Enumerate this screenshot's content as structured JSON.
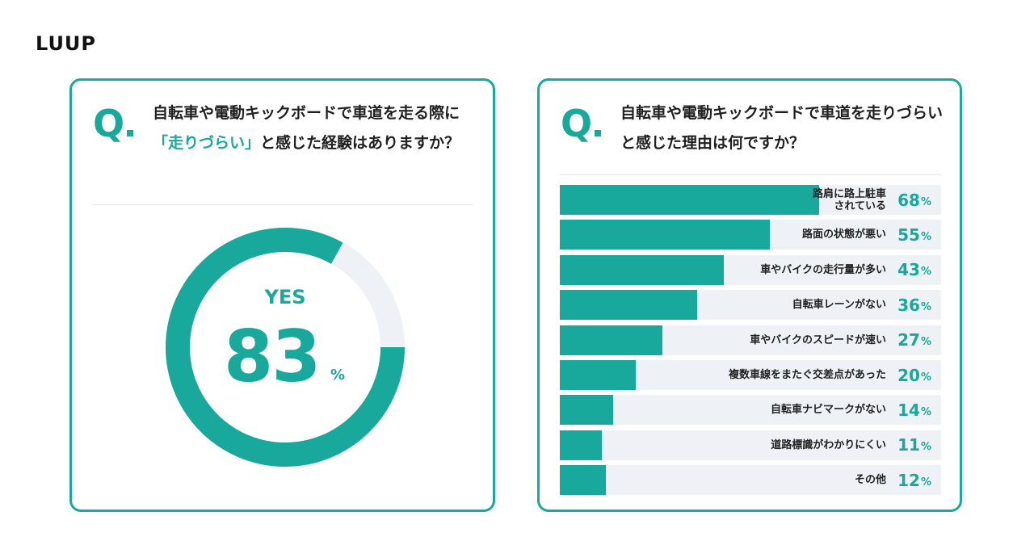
{
  "brand": {
    "logo_text": "LUUP",
    "accent_color": "#19a89c",
    "track_color": "#eef1f6"
  },
  "card_left": {
    "q_mark": "Q",
    "question_part1": "自転車や電動キックボードで車道を走る際に",
    "question_highlight": "「走りづらい」",
    "question_part2": "と感じた経験はありますか？",
    "answer_label": "YES",
    "percent_value": "83",
    "percent_unit": "%"
  },
  "card_right": {
    "q_mark": "Q",
    "question": "自転車や電動キックボードで車道を走りづらいと感じた理由は何ですか？"
  },
  "chart_data": [
    {
      "type": "pie",
      "title": "自転車や電動キックボードで車道を走る際に「走りづらい」と感じた経験はありますか？",
      "labels": [
        "YES",
        ""
      ],
      "values": [
        83,
        17
      ],
      "unit": "%",
      "style": "donut"
    },
    {
      "type": "bar",
      "orientation": "horizontal",
      "title": "自転車や電動キックボードで車道を走りづらいと感じた理由は何ですか？",
      "categories": [
        "路肩に路上駐車されている",
        "路面の状態が悪い",
        "車やバイクの走行量が多い",
        "自転車レーンがない",
        "車やバイクのスピードが速い",
        "複数車線をまたぐ交差点があった",
        "自転車ナビマークがない",
        "道路標識がわかりにくい",
        "その他"
      ],
      "label_lines": [
        [
          "路肩に路上駐車",
          "されている"
        ],
        [
          "路面の状態が悪い"
        ],
        [
          "車やバイクの走行量が多い"
        ],
        [
          "自転車レーンがない"
        ],
        [
          "車やバイクのスピードが速い"
        ],
        [
          "複数車線をまたぐ交差点があった"
        ],
        [
          "自転車ナビマークがない"
        ],
        [
          "道路標識がわかりにくい"
        ],
        [
          "その他"
        ]
      ],
      "values": [
        68,
        55,
        43,
        36,
        27,
        20,
        14,
        11,
        12
      ],
      "unit": "%",
      "xlim": [
        0,
        100
      ]
    }
  ]
}
